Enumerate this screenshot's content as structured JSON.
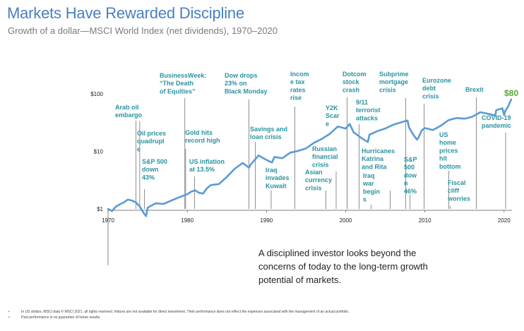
{
  "header": {
    "title": "Markets Have Rewarded Discipline",
    "subtitle": "Growth of a dollar—MSCI World Index (net dividends), 1970–2020"
  },
  "chart_data": {
    "type": "line",
    "scale": "log",
    "xlim": [
      1970,
      2021
    ],
    "ylim": [
      1,
      100
    ],
    "y_ticks": [
      {
        "value": 1,
        "label": "$1"
      },
      {
        "value": 10,
        "label": "$10"
      },
      {
        "value": 100,
        "label": "$100"
      }
    ],
    "x_ticks": [
      {
        "value": 1970,
        "label": "1970"
      },
      {
        "value": 1980,
        "label": "1980"
      },
      {
        "value": 1990,
        "label": "1990"
      },
      {
        "value": 2000,
        "label": "2000"
      },
      {
        "value": 2010,
        "label": "2010"
      },
      {
        "value": 2020,
        "label": "2020"
      }
    ],
    "series": [
      {
        "color": "#5b9bd5",
        "x": [
          1970,
          1970.5,
          1971,
          1971.5,
          1972,
          1972.5,
          1973,
          1973.5,
          1974,
          1974.5,
          1974.8,
          1975,
          1975.5,
          1976,
          1977,
          1978,
          1979,
          1980,
          1980.5,
          1981,
          1981.5,
          1982,
          1982.5,
          1983,
          1984,
          1985,
          1986,
          1987,
          1987.8,
          1988,
          1989,
          1990,
          1990.7,
          1991,
          1992,
          1993,
          1994,
          1995,
          1996,
          1997,
          1998,
          1999,
          2000,
          2000.5,
          2001,
          2002,
          2002.8,
          2003,
          2004,
          2005,
          2006,
          2007,
          2007.8,
          2008,
          2008.5,
          2009,
          2009.2,
          2009.6,
          2010,
          2011,
          2012,
          2013,
          2014,
          2015,
          2016,
          2017,
          2018,
          2018.9,
          2019,
          2019.8,
          2020,
          2020.2,
          2020.5,
          2020.9
        ],
        "values": [
          1.0,
          0.92,
          1.1,
          1.2,
          1.3,
          1.45,
          1.4,
          1.3,
          1.1,
          0.85,
          0.75,
          1.05,
          1.15,
          1.25,
          1.22,
          1.4,
          1.6,
          1.8,
          2.0,
          2.1,
          1.9,
          1.85,
          2.3,
          2.6,
          2.7,
          3.6,
          5.0,
          6.3,
          5.2,
          5.9,
          8.5,
          7.1,
          6.4,
          8.0,
          7.6,
          9.5,
          10.2,
          11.3,
          14.1,
          16.5,
          20.2,
          27.0,
          25.0,
          30.0,
          21.5,
          17.0,
          14.5,
          19.5,
          22.5,
          25.0,
          29.0,
          32.0,
          34.5,
          26.0,
          20.0,
          16.0,
          17.5,
          23.0,
          25.5,
          23.5,
          28.0,
          35.0,
          38.0,
          37.0,
          40.0,
          48.0,
          45.0,
          42.0,
          52.0,
          56.0,
          43.0,
          52.0,
          60.0,
          80.0
        ]
      }
    ],
    "end_label": "$80",
    "annotations": [
      {
        "year": 1973.5,
        "lines": [
          "Arab oil",
          "embargo"
        ]
      },
      {
        "year": 1974,
        "lines": [
          "Oil prices",
          "quadrupl",
          "e"
        ]
      },
      {
        "year": 1974.6,
        "lines": [
          "S&P 500",
          "down",
          "43%"
        ]
      },
      {
        "year": 1979.7,
        "lines": [
          "BusinessWeek:",
          "“The Death",
          "of Equities”"
        ]
      },
      {
        "year": 1979.8,
        "lines": [
          "Gold hits",
          "record high"
        ]
      },
      {
        "year": 1980.9,
        "lines": [
          "US inflation",
          "at 13.5%"
        ]
      },
      {
        "year": 1987.8,
        "lines": [
          "Dow drops",
          "23% on",
          "Black Monday"
        ]
      },
      {
        "year": 1988.6,
        "lines": [
          "Savings and",
          "loan crisis"
        ]
      },
      {
        "year": 1990.6,
        "lines": [
          "Iraq",
          "invades",
          "Kuwait"
        ]
      },
      {
        "year": 1993.6,
        "lines": [
          "Incom",
          "e tax",
          "rates",
          "rise"
        ]
      },
      {
        "year": 1997.5,
        "lines": [
          "Asian",
          "currency",
          "crisis"
        ]
      },
      {
        "year": 1998.8,
        "lines": [
          "Russian",
          "financial",
          "crisis"
        ]
      },
      {
        "year": 2000.2,
        "lines": [
          "Y2K",
          "Scar",
          "e"
        ]
      },
      {
        "year": 2000.2,
        "lines": [
          "Dotcom",
          "stock",
          "crash"
        ]
      },
      {
        "year": 2001.7,
        "lines": [
          "9/11",
          "terrorist",
          "attacks"
        ]
      },
      {
        "year": 2003.2,
        "lines": [
          "Iraq",
          "war",
          "begin",
          "s"
        ]
      },
      {
        "year": 2005.6,
        "lines": [
          "Hurricanes",
          "Katrina",
          "and Rita"
        ]
      },
      {
        "year": 2007.6,
        "lines": [
          "Subprime",
          "mortgage",
          "crisis"
        ]
      },
      {
        "year": 2008.1,
        "lines": [
          "S&P",
          "500",
          "dow",
          "n",
          "46%"
        ]
      },
      {
        "year": 2009.9,
        "lines": [
          "Eurozone",
          "debt",
          "crisis"
        ]
      },
      {
        "year": 2013,
        "lines": [
          "US",
          "home",
          "prices",
          "hit",
          "bottom"
        ]
      },
      {
        "year": 2013.2,
        "lines": [
          "Fiscal",
          "cliff",
          "worries"
        ]
      },
      {
        "year": 2016.5,
        "lines": [
          "Brexit"
        ]
      },
      {
        "year": 2020.2,
        "lines": [
          "COVID-19",
          "pandemic"
        ]
      }
    ]
  },
  "callout": {
    "text": "A disciplined investor looks beyond the concerns of today to the long-term growth potential of markets."
  },
  "footnotes": [
    "In US dollars. MSCI data © MSCI 2021, all rights reserved. Indices are not available for direct investment. Their performance does not reflect the expenses associated with the management of an actual portfolio.",
    "Past performance is no guarantee of future results."
  ]
}
